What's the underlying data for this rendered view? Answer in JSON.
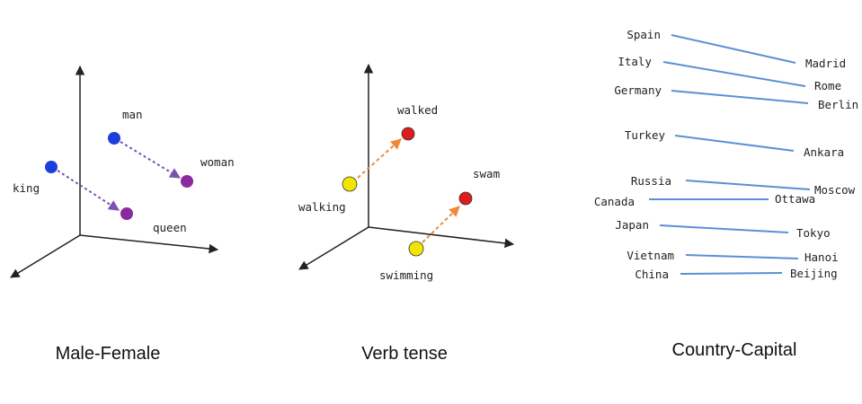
{
  "panels": {
    "male_female": {
      "caption": "Male-Female",
      "words": {
        "man": "man",
        "woman": "woman",
        "king": "king",
        "queen": "queen"
      }
    },
    "verb_tense": {
      "caption": "Verb tense",
      "words": {
        "walked": "walked",
        "walking": "walking",
        "swam": "swam",
        "swimming": "swimming"
      }
    },
    "country_capital": {
      "caption": "Country-Capital",
      "pairs": [
        {
          "country": "Spain",
          "capital": "Madrid"
        },
        {
          "country": "Italy",
          "capital": "Rome"
        },
        {
          "country": "Germany",
          "capital": "Berlin"
        },
        {
          "country": "Turkey",
          "capital": "Ankara"
        },
        {
          "country": "Russia",
          "capital": "Moscow"
        },
        {
          "country": "Canada",
          "capital": "Ottawa"
        },
        {
          "country": "Japan",
          "capital": "Tokyo"
        },
        {
          "country": "Vietnam",
          "capital": "Hanoi"
        },
        {
          "country": "China",
          "capital": "Beijing"
        }
      ]
    }
  },
  "colors": {
    "male_dot": "#1b3fdc",
    "female_dot": "#8a2a9e",
    "gender_arrow": "#7b52b0",
    "present_dot": "#f2e600",
    "past_dot": "#e01b1b",
    "tense_arrow": "#ef8a3a",
    "country_line": "#5b8fd4",
    "axis": "#222222"
  }
}
